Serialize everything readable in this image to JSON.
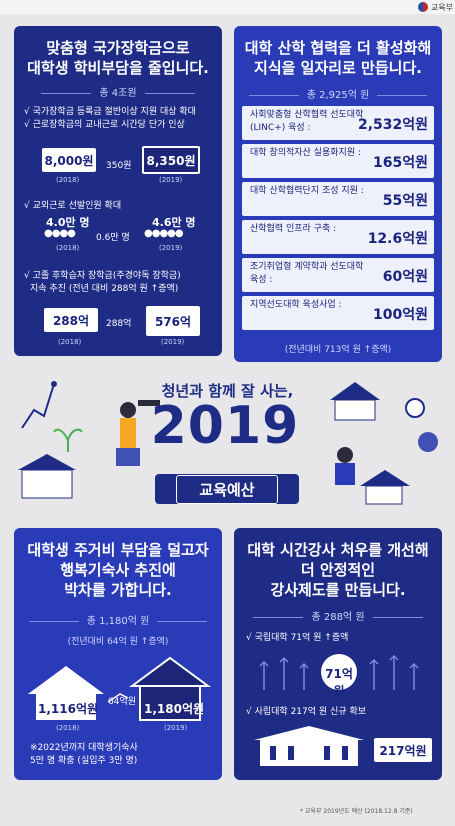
{
  "ministry": {
    "name": "교육부"
  },
  "center": {
    "tagline": "청년과 함께 잘 사는,",
    "year": "2019",
    "badge": "교육예산"
  },
  "card1": {
    "title_line1": "맞춤형 국가장학금으로",
    "title_line2": "대학생 학비부담을 줄입니다.",
    "total": "총 4조원",
    "b1": "√ 국가장학금 등록금 절반이상 지원 대상 확대",
    "b2": "√ 근로장학금의 교내근로 시간당 단가 인상",
    "wage_2018": "8,000원",
    "wage_2019": "8,350원",
    "wage_diff": "350원",
    "year_2018": "(2018)",
    "year_2019": "(2019)",
    "b3": "√ 교외근로 선발인원 확대",
    "people_2018": "4.0만 명",
    "people_2019": "4.6만 명",
    "people_diff": "0.6만 명",
    "b4_line1": "√ 고졸 후학습자 장학금(주경야독 장학금)",
    "b4_line2": "지속 추진 (전년 대비 288억 원 ↑증액)",
    "fund_2018": "288억",
    "fund_2019": "576억",
    "fund_diff": "288억"
  },
  "card2": {
    "title_line1": "대학 산학 협력을 더 활성화해",
    "title_line2": "지식을 일자리로 만듭니다.",
    "total": "총 2,925억 원",
    "rows": [
      {
        "label": "사회맞춤형 산학협력 선도대학(LINC+) 육성 :",
        "value": "2,532억원"
      },
      {
        "label": "대학 창의적자산 실용화지원 :",
        "value": "165억원"
      },
      {
        "label": "대학 산학협력단지 조성 지원 :",
        "value": "55억원"
      },
      {
        "label": "산학협력 인프라 구축 :",
        "value": "12.6억원"
      },
      {
        "label": "조기취업형 계약학과 선도대학 육성 :",
        "value": "60억원"
      },
      {
        "label": "지역선도대학 육성사업 :",
        "value": "100억원"
      }
    ],
    "note": "(전년대비 713억 원 ↑증액)"
  },
  "card3": {
    "title_line1": "대학생 주거비 부담을 덜고자",
    "title_line2": "행복기숙사 추진에",
    "title_line3": "박차를 가합니다.",
    "total": "총 1,180억 원",
    "note": "(전년대비 64억 원 ↑증액)",
    "v2018": "1,116억원",
    "v2019": "1,180억원",
    "diff": "64억원",
    "y2018": "(2018)",
    "y2019": "(2019)",
    "foot1": "※2022년까지 대학생기숙사",
    "foot2": "5만 명 확충 (실입주 3만 명)"
  },
  "card4": {
    "title_line1": "대학 시간강사 처우를 개선해",
    "title_line2": "더 안정적인",
    "title_line3": "강사제도를 만듭니다.",
    "total": "총 288억 원",
    "b1": "√ 국립대학  71억 원 ↑증액",
    "v1": "71억원",
    "b2": "√ 사립대학  217억 원 신규 확보",
    "v2": "217억원"
  },
  "footnote": "* 교육부 2019년도 예산 (2018.12.8 기준)",
  "colors": {
    "navy": "#1f2c86",
    "blue": "#2a3bb8",
    "accent": "#4caf50"
  }
}
